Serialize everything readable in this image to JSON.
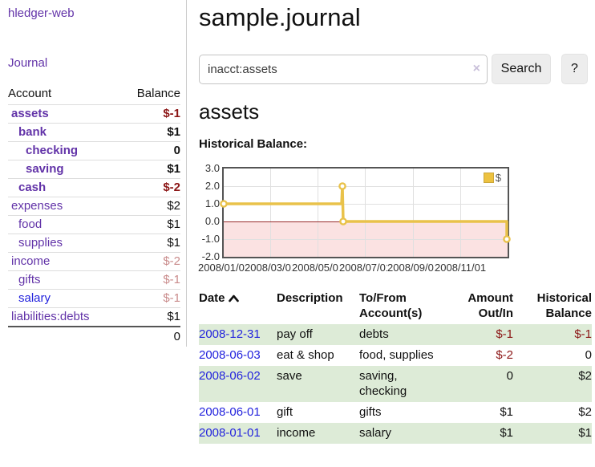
{
  "app": {
    "title": "hledger-web",
    "nav_journal": "Journal"
  },
  "sidebar": {
    "col_account": "Account",
    "col_balance": "Balance",
    "accounts": [
      {
        "name": "assets",
        "indent": 1,
        "bold": true,
        "balance": "$-1",
        "neg": "strong"
      },
      {
        "name": "bank",
        "indent": 2,
        "bold": true,
        "balance": "$1"
      },
      {
        "name": "checking",
        "indent": 3,
        "bold": true,
        "balance": "0"
      },
      {
        "name": "saving",
        "indent": 3,
        "bold": true,
        "balance": "$1"
      },
      {
        "name": "cash",
        "indent": 2,
        "bold": true,
        "balance": "$-2",
        "neg": "strong"
      },
      {
        "name": "expenses",
        "indent": 1,
        "bold": false,
        "balance": "$2"
      },
      {
        "name": "food",
        "indent": 2,
        "bold": false,
        "balance": "$1"
      },
      {
        "name": "supplies",
        "indent": 2,
        "bold": false,
        "balance": "$1"
      },
      {
        "name": "income",
        "indent": 1,
        "bold": false,
        "balance": "$-2",
        "neg": "soft"
      },
      {
        "name": "gifts",
        "indent": 2,
        "bold": false,
        "balance": "$-1",
        "neg": "soft"
      },
      {
        "name": "salary",
        "indent": 2,
        "bold": false,
        "balance": "$-1",
        "neg": "soft",
        "blue": true
      },
      {
        "name": "liabilities:debts",
        "indent": 1,
        "bold": false,
        "balance": "$1"
      }
    ],
    "total": "0"
  },
  "header": {
    "title": "sample.journal"
  },
  "search": {
    "value": "inacct:assets",
    "clear_icon": "×",
    "button": "Search",
    "help": "?"
  },
  "account_page": {
    "heading": "assets",
    "chart_label": "Historical Balance:"
  },
  "chart_data": {
    "type": "line",
    "title": "Historical Balance:",
    "xlim": [
      "2008-01-01",
      "2009-01-01"
    ],
    "ylim": [
      -2,
      3
    ],
    "yticks": [
      "3.0",
      "2.0",
      "1.0",
      "0.0",
      "-1.0",
      "-2.0"
    ],
    "xticks": [
      {
        "label": "2008/01/01",
        "date": "2008-01-01"
      },
      {
        "label": "2008/03/01",
        "date": "2008-03-01"
      },
      {
        "label": "2008/05/01",
        "date": "2008-05-01"
      },
      {
        "label": "2008/07/01",
        "date": "2008-07-01"
      },
      {
        "label": "2008/09/01",
        "date": "2008-09-01"
      },
      {
        "label": "2008/11/01",
        "date": "2008-11-01"
      }
    ],
    "xgrid_extra": [
      "2009-01-01"
    ],
    "series": [
      {
        "name": "$",
        "color": "#e9c24a",
        "points": [
          [
            "2008-01-01",
            1
          ],
          [
            "2008-06-01",
            1
          ],
          [
            "2008-06-02",
            2
          ],
          [
            "2008-06-03",
            0
          ],
          [
            "2008-12-31",
            0
          ],
          [
            "2008-12-31",
            -1
          ]
        ],
        "markers": [
          [
            "2008-01-01",
            1
          ],
          [
            "2008-06-02",
            2
          ],
          [
            "2008-06-03",
            0
          ],
          [
            "2008-12-31",
            -1
          ]
        ]
      }
    ],
    "zero_line_color": "#992c2c",
    "negative_region_fill": "#fbe2e2",
    "grid": true,
    "legend_position": "top-right",
    "legend": "$"
  },
  "register": {
    "columns": [
      {
        "label": "Date",
        "align": "left",
        "sorted_asc": true
      },
      {
        "label": "Description",
        "align": "left"
      },
      {
        "label": "To/From Account(s)",
        "align": "left"
      },
      {
        "label": "Amount Out/In",
        "align": "right"
      },
      {
        "label": "Historical Balance",
        "align": "right"
      }
    ],
    "rows": [
      {
        "date": "2008-12-31",
        "description": "pay off",
        "accounts": "debts",
        "amount": "$-1",
        "amount_neg": true,
        "balance": "$-1",
        "balance_neg": true
      },
      {
        "date": "2008-06-03",
        "description": "eat & shop",
        "accounts": "food, supplies",
        "amount": "$-2",
        "amount_neg": true,
        "balance": "0",
        "balance_neg": false
      },
      {
        "date": "2008-06-02",
        "description": "save",
        "accounts": "saving, checking",
        "amount": "0",
        "amount_neg": false,
        "balance": "$2",
        "balance_neg": false
      },
      {
        "date": "2008-06-01",
        "description": "gift",
        "accounts": "gifts",
        "amount": "$1",
        "amount_neg": false,
        "balance": "$2",
        "balance_neg": false
      },
      {
        "date": "2008-01-01",
        "description": "income",
        "accounts": "salary",
        "amount": "$1",
        "amount_neg": false,
        "balance": "$1",
        "balance_neg": false
      }
    ]
  }
}
